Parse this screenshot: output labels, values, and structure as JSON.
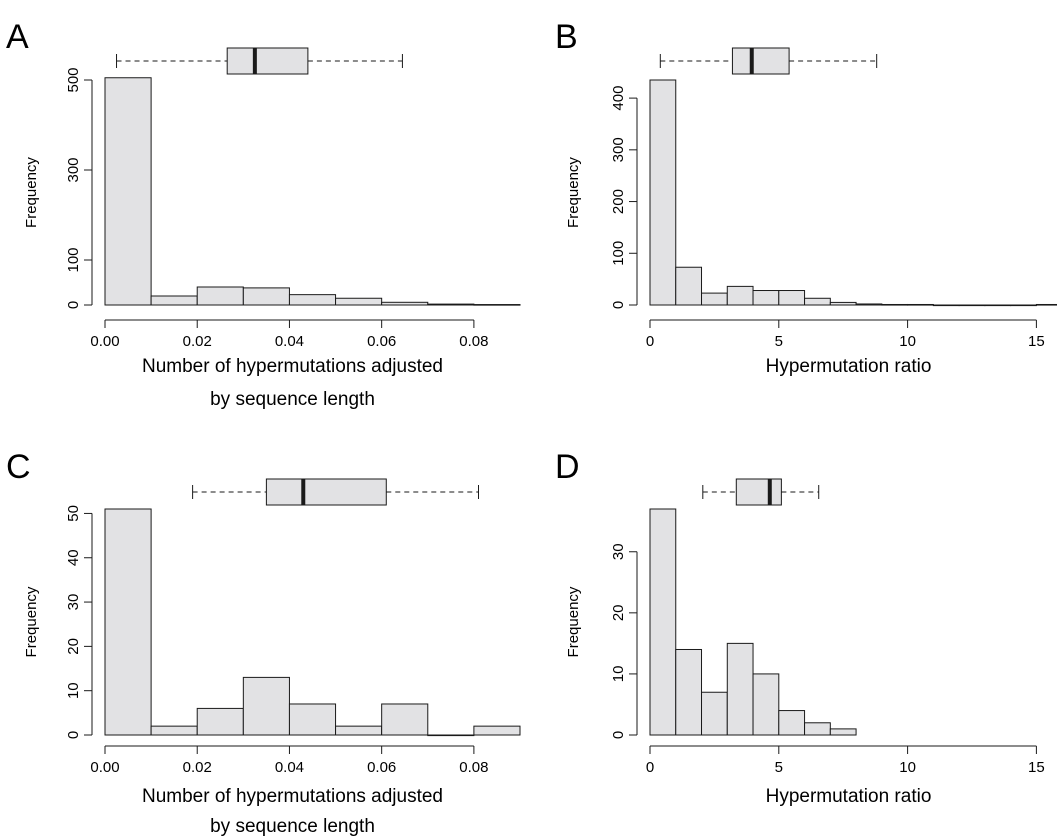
{
  "chart_data": [
    {
      "panel": "A",
      "type": "histogram",
      "xlabel": [
        "Number of hypermutations adjusted",
        "by sequence length"
      ],
      "ylabel": "Frequency",
      "xlim": [
        0,
        0.09
      ],
      "ylim": [
        0,
        500
      ],
      "x_ticks": [
        "0.00",
        "0.02",
        "0.04",
        "0.06",
        "0.08"
      ],
      "y_ticks": [
        "0",
        "100",
        "300",
        "500"
      ],
      "bins": [
        {
          "x0": 0.0,
          "x1": 0.01,
          "count": 505
        },
        {
          "x0": 0.01,
          "x1": 0.02,
          "count": 20
        },
        {
          "x0": 0.02,
          "x1": 0.03,
          "count": 40
        },
        {
          "x0": 0.03,
          "x1": 0.04,
          "count": 38
        },
        {
          "x0": 0.04,
          "x1": 0.05,
          "count": 23
        },
        {
          "x0": 0.05,
          "x1": 0.06,
          "count": 15
        },
        {
          "x0": 0.06,
          "x1": 0.07,
          "count": 6
        },
        {
          "x0": 0.07,
          "x1": 0.08,
          "count": 2
        },
        {
          "x0": 0.08,
          "x1": 0.09,
          "count": 1
        }
      ],
      "boxplot": {
        "whisker_low": 0.0025,
        "q1": 0.0265,
        "median": 0.0325,
        "q3": 0.044,
        "whisker_high": 0.0645
      }
    },
    {
      "panel": "B",
      "type": "histogram",
      "xlabel": [
        "Hypermutation ratio"
      ],
      "ylabel": "Frequency",
      "xlim": [
        0,
        15.8
      ],
      "ylim": [
        0,
        435
      ],
      "x_ticks": [
        "0",
        "5",
        "10",
        "15"
      ],
      "y_ticks": [
        "0",
        "100",
        "200",
        "300",
        "400"
      ],
      "bins": [
        {
          "x0": 0,
          "x1": 1,
          "count": 435
        },
        {
          "x0": 1,
          "x1": 2,
          "count": 73
        },
        {
          "x0": 2,
          "x1": 3,
          "count": 23
        },
        {
          "x0": 3,
          "x1": 4,
          "count": 36
        },
        {
          "x0": 4,
          "x1": 5,
          "count": 28
        },
        {
          "x0": 5,
          "x1": 6,
          "count": 28
        },
        {
          "x0": 6,
          "x1": 7,
          "count": 13
        },
        {
          "x0": 7,
          "x1": 8,
          "count": 5
        },
        {
          "x0": 8,
          "x1": 9,
          "count": 2
        },
        {
          "x0": 9,
          "x1": 10,
          "count": 1
        },
        {
          "x0": 10,
          "x1": 11,
          "count": 1
        },
        {
          "x0": 11,
          "x1": 12,
          "count": 0
        },
        {
          "x0": 12,
          "x1": 13,
          "count": 0
        },
        {
          "x0": 13,
          "x1": 14,
          "count": 0
        },
        {
          "x0": 14,
          "x1": 15,
          "count": 0
        },
        {
          "x0": 15,
          "x1": 16,
          "count": 1
        }
      ],
      "boxplot": {
        "whisker_low": 0.4,
        "q1": 3.2,
        "median": 3.95,
        "q3": 5.4,
        "whisker_high": 8.8
      }
    },
    {
      "panel": "C",
      "type": "histogram",
      "xlabel": [
        "Number of hypermutations adjusted",
        "by sequence length"
      ],
      "ylabel": "Frequency",
      "xlim": [
        0,
        0.09
      ],
      "ylim": [
        0,
        51
      ],
      "x_ticks": [
        "0.00",
        "0.02",
        "0.04",
        "0.06",
        "0.08"
      ],
      "y_ticks": [
        "0",
        "10",
        "20",
        "30",
        "40",
        "50"
      ],
      "bins": [
        {
          "x0": 0.0,
          "x1": 0.01,
          "count": 51
        },
        {
          "x0": 0.01,
          "x1": 0.02,
          "count": 2
        },
        {
          "x0": 0.02,
          "x1": 0.03,
          "count": 6
        },
        {
          "x0": 0.03,
          "x1": 0.04,
          "count": 13
        },
        {
          "x0": 0.04,
          "x1": 0.05,
          "count": 7
        },
        {
          "x0": 0.05,
          "x1": 0.06,
          "count": 2
        },
        {
          "x0": 0.06,
          "x1": 0.07,
          "count": 7
        },
        {
          "x0": 0.07,
          "x1": 0.08,
          "count": 0
        },
        {
          "x0": 0.08,
          "x1": 0.09,
          "count": 2
        }
      ],
      "boxplot": {
        "whisker_low": 0.019,
        "q1": 0.035,
        "median": 0.043,
        "q3": 0.061,
        "whisker_high": 0.081
      }
    },
    {
      "panel": "D",
      "type": "histogram",
      "xlabel": [
        "Hypermutation ratio"
      ],
      "ylabel": "Frequency",
      "xlim": [
        0,
        15.8
      ],
      "ylim": [
        0,
        37
      ],
      "x_ticks": [
        "0",
        "5",
        "10",
        "15"
      ],
      "y_ticks": [
        "0",
        "10",
        "20",
        "30"
      ],
      "bins": [
        {
          "x0": 0,
          "x1": 1,
          "count": 37
        },
        {
          "x0": 1,
          "x1": 2,
          "count": 14
        },
        {
          "x0": 2,
          "x1": 3,
          "count": 7
        },
        {
          "x0": 3,
          "x1": 4,
          "count": 15
        },
        {
          "x0": 4,
          "x1": 5,
          "count": 10
        },
        {
          "x0": 5,
          "x1": 6,
          "count": 4
        },
        {
          "x0": 6,
          "x1": 7,
          "count": 2
        },
        {
          "x0": 7,
          "x1": 8,
          "count": 1
        }
      ],
      "boxplot": {
        "whisker_low": 2.05,
        "q1": 3.35,
        "median": 4.65,
        "q3": 5.1,
        "whisker_high": 6.55
      }
    }
  ],
  "colors": {
    "bar_fill": "#e2e2e4",
    "stroke": "#1a1a1a",
    "median": "#1a1a1a"
  }
}
